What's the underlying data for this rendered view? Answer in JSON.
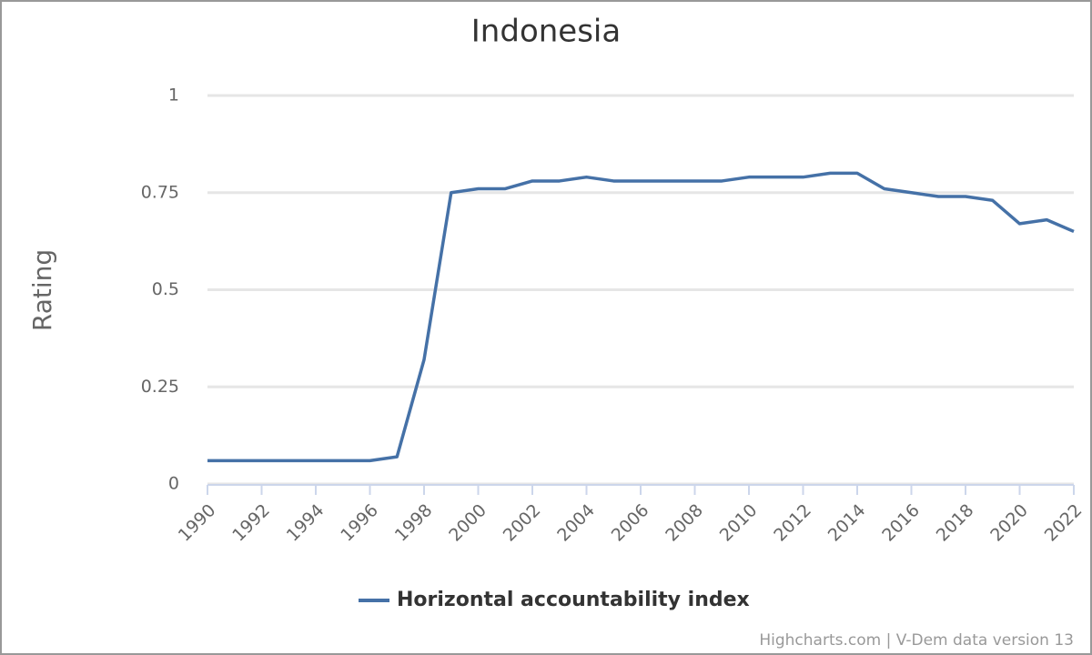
{
  "chart_data": {
    "type": "line",
    "title": "Indonesia",
    "y_label": "Rating",
    "x": [
      1990,
      1991,
      1992,
      1993,
      1994,
      1995,
      1996,
      1997,
      1998,
      1999,
      2000,
      2001,
      2002,
      2003,
      2004,
      2005,
      2006,
      2007,
      2008,
      2009,
      2010,
      2011,
      2012,
      2013,
      2014,
      2015,
      2016,
      2017,
      2018,
      2019,
      2020,
      2021,
      2022
    ],
    "series": [
      {
        "name": "Horizontal accountability index",
        "color": "#4571a7",
        "values": [
          0.06,
          0.06,
          0.06,
          0.06,
          0.06,
          0.06,
          0.06,
          0.07,
          0.32,
          0.75,
          0.76,
          0.76,
          0.78,
          0.78,
          0.79,
          0.78,
          0.78,
          0.78,
          0.78,
          0.78,
          0.79,
          0.79,
          0.79,
          0.8,
          0.8,
          0.76,
          0.75,
          0.74,
          0.74,
          0.73,
          0.67,
          0.68,
          0.65
        ]
      }
    ],
    "xlim": [
      1990,
      2022
    ],
    "xticks": [
      1990,
      1992,
      1994,
      1996,
      1998,
      2000,
      2002,
      2004,
      2006,
      2008,
      2010,
      2012,
      2014,
      2016,
      2018,
      2020,
      2022
    ],
    "ylim": [
      0,
      1
    ],
    "yticks": [
      0,
      0.25,
      0.5,
      0.75,
      1
    ],
    "grid": true,
    "legend": "bottom",
    "credits": "Highcharts.com | V-Dem data version 13"
  }
}
